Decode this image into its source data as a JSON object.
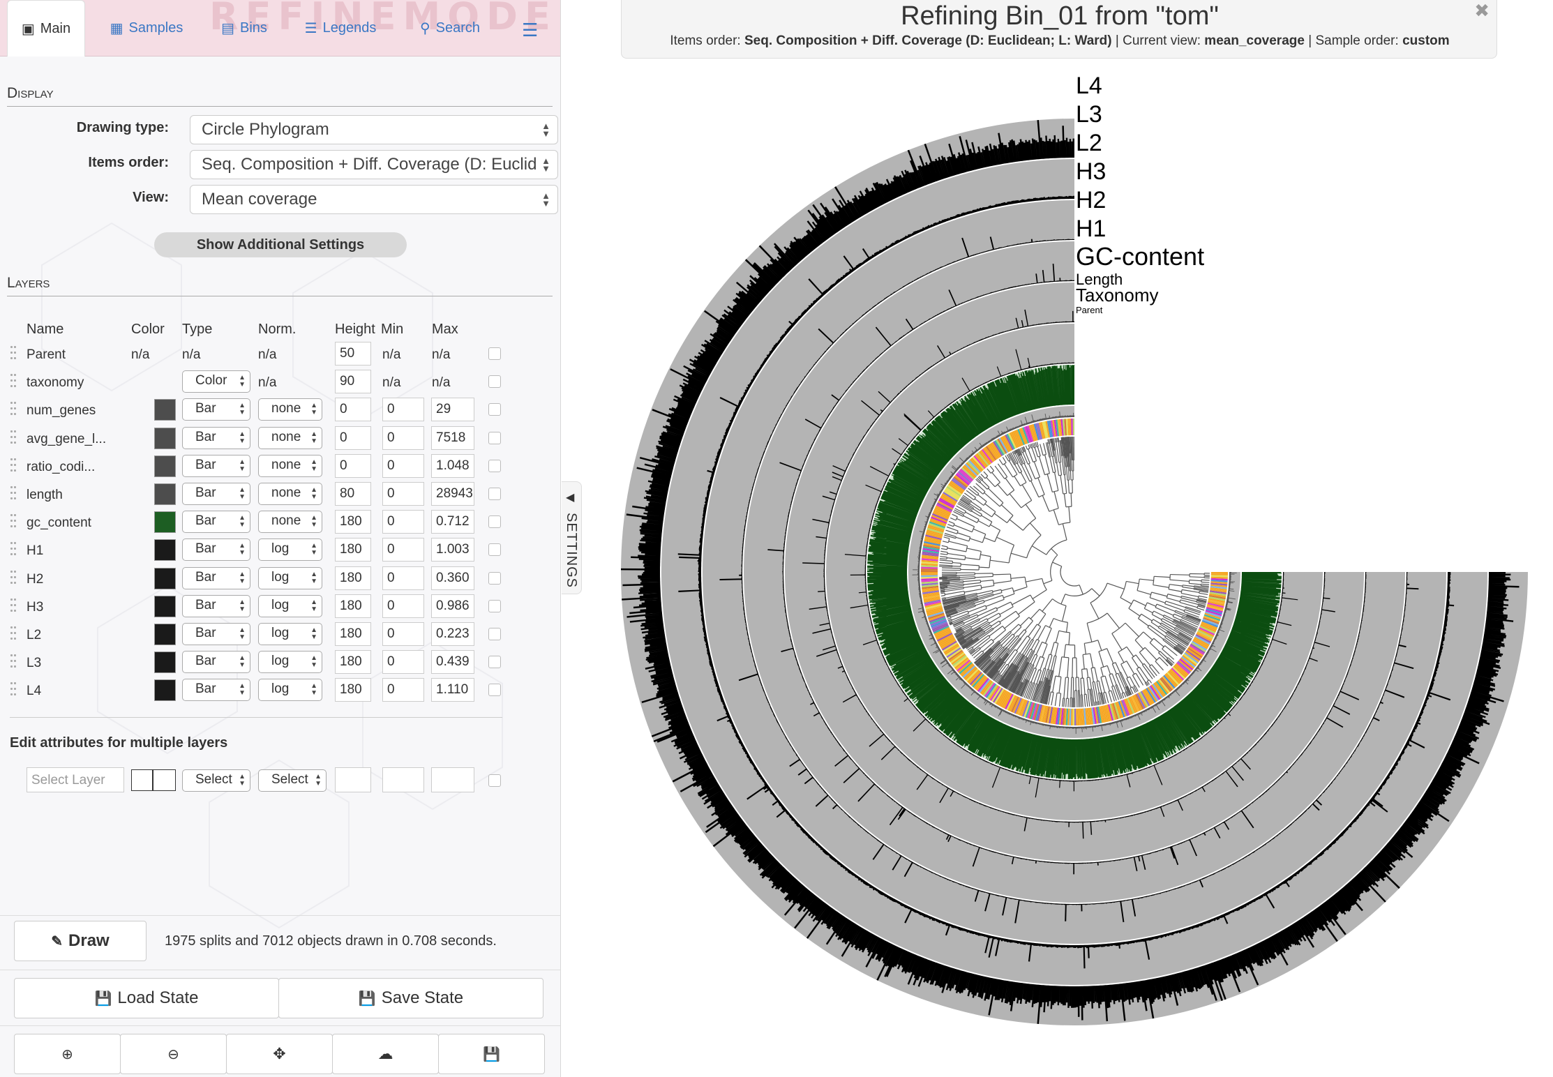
{
  "tabs": [
    {
      "label": "Main",
      "icon": "image-icon",
      "active": true
    },
    {
      "label": "Samples",
      "icon": "samples-icon"
    },
    {
      "label": "Bins",
      "icon": "bins-icon"
    },
    {
      "label": "Legends",
      "icon": "legends-icon"
    },
    {
      "label": "Search",
      "icon": "search-icon"
    }
  ],
  "brand": "REFINEMODE",
  "display": {
    "title": "Display",
    "drawing_type_label": "Drawing type:",
    "drawing_type_value": "Circle Phylogram",
    "items_order_label": "Items order:",
    "items_order_value": "Seq. Composition + Diff. Coverage (D: Euclid",
    "view_label": "View:",
    "view_value": "Mean coverage",
    "show_additional": "Show Additional Settings"
  },
  "layers": {
    "title": "Layers",
    "columns": [
      "Name",
      "Color",
      "Type",
      "Norm.",
      "Height",
      "Min",
      "Max"
    ],
    "rows": [
      {
        "name": "Parent",
        "color": "n/a",
        "type": "n/a",
        "norm": "n/a",
        "height": "50",
        "min": "n/a",
        "max": "n/a",
        "kind": "text"
      },
      {
        "name": "taxonomy",
        "color": "",
        "type": "Color",
        "norm": "n/a",
        "height": "90",
        "min": "n/a",
        "max": "n/a",
        "kind": "taxonomy"
      },
      {
        "name": "num_genes",
        "color": "#4d4d4d",
        "type": "Bar",
        "norm": "none",
        "height": "0",
        "min": "0",
        "max": "29",
        "kind": "bar"
      },
      {
        "name": "avg_gene_l...",
        "color": "#4d4d4d",
        "type": "Bar",
        "norm": "none",
        "height": "0",
        "min": "0",
        "max": "7518",
        "kind": "bar"
      },
      {
        "name": "ratio_codi...",
        "color": "#4d4d4d",
        "type": "Bar",
        "norm": "none",
        "height": "0",
        "min": "0",
        "max": "1.048",
        "kind": "bar"
      },
      {
        "name": "length",
        "color": "#4d4d4d",
        "type": "Bar",
        "norm": "none",
        "height": "80",
        "min": "0",
        "max": "28943",
        "kind": "bar"
      },
      {
        "name": "gc_content",
        "color": "#1d5e23",
        "type": "Bar",
        "norm": "none",
        "height": "180",
        "min": "0",
        "max": "0.712",
        "kind": "bar"
      },
      {
        "name": "H1",
        "color": "#1a1a1a",
        "type": "Bar",
        "norm": "log",
        "height": "180",
        "min": "0",
        "max": "1.003",
        "kind": "bar"
      },
      {
        "name": "H2",
        "color": "#1a1a1a",
        "type": "Bar",
        "norm": "log",
        "height": "180",
        "min": "0",
        "max": "0.360",
        "kind": "bar"
      },
      {
        "name": "H3",
        "color": "#1a1a1a",
        "type": "Bar",
        "norm": "log",
        "height": "180",
        "min": "0",
        "max": "0.986",
        "kind": "bar"
      },
      {
        "name": "L2",
        "color": "#1a1a1a",
        "type": "Bar",
        "norm": "log",
        "height": "180",
        "min": "0",
        "max": "0.223",
        "kind": "bar"
      },
      {
        "name": "L3",
        "color": "#1a1a1a",
        "type": "Bar",
        "norm": "log",
        "height": "180",
        "min": "0",
        "max": "0.439",
        "kind": "bar"
      },
      {
        "name": "L4",
        "color": "#1a1a1a",
        "type": "Bar",
        "norm": "log",
        "height": "180",
        "min": "0",
        "max": "1.110",
        "kind": "bar"
      }
    ]
  },
  "multi_edit": {
    "title": "Edit attributes for multiple layers",
    "layer_placeholder": "Select Layer",
    "type_select": "Select",
    "norm_select": "Select"
  },
  "draw": {
    "label": "Draw",
    "status": "1975 splits and 7012 objects drawn in 0.708 seconds."
  },
  "state": {
    "load": "Load State",
    "save": "Save State"
  },
  "toolbar_icons": [
    "zoom-in-icon",
    "zoom-out-icon",
    "center-icon",
    "upload-icon",
    "save-icon"
  ],
  "settings_toggle": "SETTINGS",
  "header": {
    "title": "Refining Bin_01 from \"tom\"",
    "items_order_label": "Items order:",
    "items_order_value": "Seq. Composition + Diff. Coverage (D: Euclidean; L: Ward)",
    "current_view_label": "Current view:",
    "current_view_value": "mean_coverage",
    "sample_order_label": "Sample order:",
    "sample_order_value": "custom",
    "separator": "|"
  },
  "ring_labels": [
    {
      "text": "L4",
      "color": "#000000"
    },
    {
      "text": "L3",
      "color": "#000000"
    },
    {
      "text": "L2",
      "color": "#000000"
    },
    {
      "text": "H3",
      "color": "#000000"
    },
    {
      "text": "H2",
      "color": "#000000"
    },
    {
      "text": "H1",
      "color": "#000000"
    },
    {
      "text": "GC-content",
      "color": "#0d4a14"
    },
    {
      "text": "Length",
      "color": "#333333"
    },
    {
      "text": "Taxonomy",
      "color": "#000000"
    },
    {
      "text": "Parent",
      "color": "#000000"
    }
  ],
  "colors": {
    "ring_bg": "#b4b4b4",
    "coverage": "#000000",
    "gc": "#0b4d10",
    "gc_bg": "#cde3cd",
    "taxonomy": [
      "#f5a623",
      "#f7b733",
      "#e040c8",
      "#cc2fd0",
      "#9b59b6",
      "#7fb3e6",
      "#4a90d9",
      "#b8d86b",
      "#e8e05a",
      "#d47a3a",
      "#8e6fcf",
      "#3fb8a8"
    ]
  }
}
